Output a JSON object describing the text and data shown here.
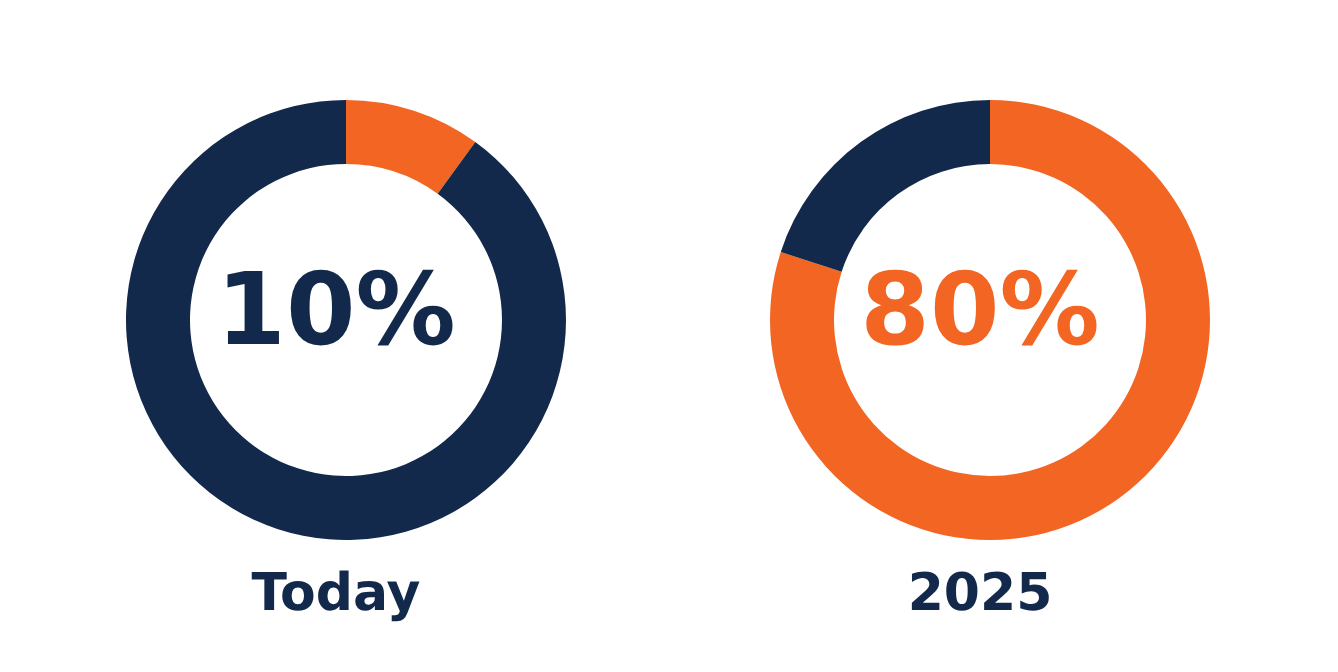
{
  "chart_data": [
    {
      "type": "donut",
      "title": "Today",
      "categories": [
        null,
        null
      ],
      "values": [
        10,
        90
      ],
      "colors": [
        "#f26522",
        "#13294b"
      ],
      "annotations": [
        "10%"
      ]
    },
    {
      "type": "donut",
      "title": "2025",
      "categories": [
        null,
        null
      ],
      "values": [
        80,
        20
      ],
      "colors": [
        "#f26522",
        "#13294b"
      ],
      "annotations": [
        "80%"
      ]
    }
  ]
}
